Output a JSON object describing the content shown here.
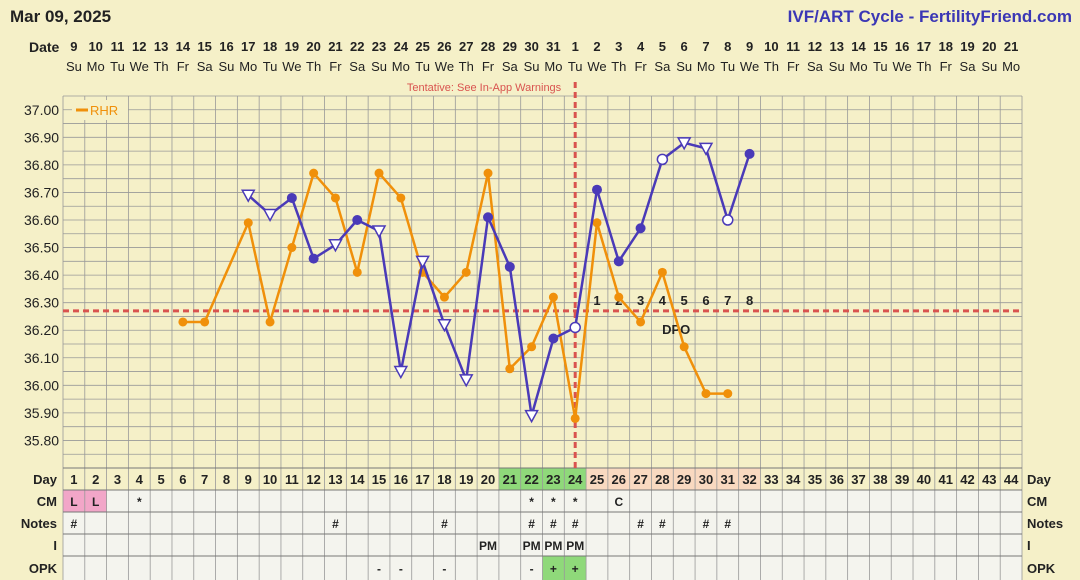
{
  "header": {
    "date": "Mar 09, 2025",
    "site": "IVF/ART Cycle - FertilityFriend.com"
  },
  "colors": {
    "background": "#f5f0c8",
    "grid": "#999999",
    "temp_series": "#4a3ab8",
    "rhr_series": "#f0900a",
    "coverline": "#d9534f",
    "fertile_day_bg": "#8fd97a",
    "post_ov_day_bg": "#f9d9c0",
    "menses_bg": "#f2a6c8"
  },
  "chart_data": {
    "type": "line",
    "x_label_left": "Date",
    "y_label": "",
    "ylim": [
      35.7,
      37.05
    ],
    "y_ticks": [
      "37.00",
      "36.90",
      "36.80",
      "36.70",
      "36.60",
      "36.50",
      "36.40",
      "36.30",
      "36.20",
      "36.10",
      "36.00",
      "35.90",
      "35.80"
    ],
    "dates": [
      "9",
      "10",
      "11",
      "12",
      "13",
      "14",
      "15",
      "16",
      "17",
      "18",
      "19",
      "20",
      "21",
      "22",
      "23",
      "24",
      "25",
      "26",
      "27",
      "28",
      "29",
      "30",
      "31",
      "1",
      "2",
      "3",
      "4",
      "5",
      "6",
      "7",
      "8",
      "9",
      "10",
      "11",
      "12",
      "13",
      "14",
      "15",
      "16",
      "17",
      "18",
      "19",
      "20",
      "21"
    ],
    "weekdays": [
      "Su",
      "Mo",
      "Tu",
      "We",
      "Th",
      "Fr",
      "Sa",
      "Su",
      "Mo",
      "Tu",
      "We",
      "Th",
      "Fr",
      "Sa",
      "Su",
      "Mo",
      "Tu",
      "We",
      "Th",
      "Fr",
      "Sa",
      "Su",
      "Mo",
      "Tu",
      "We",
      "Th",
      "Fr",
      "Sa",
      "Su",
      "Mo",
      "Tu",
      "We",
      "Th",
      "Fr",
      "Sa",
      "Su",
      "Mo",
      "Tu",
      "We",
      "Th",
      "Fr",
      "Sa",
      "Su",
      "Mo"
    ],
    "cycle_days": [
      "1",
      "2",
      "3",
      "4",
      "5",
      "6",
      "7",
      "8",
      "9",
      "10",
      "11",
      "12",
      "13",
      "14",
      "15",
      "16",
      "17",
      "18",
      "19",
      "20",
      "21",
      "22",
      "23",
      "24",
      "25",
      "26",
      "27",
      "28",
      "29",
      "30",
      "31",
      "32",
      "33",
      "34",
      "35",
      "36",
      "37",
      "38",
      "39",
      "40",
      "41",
      "42",
      "43",
      "44"
    ],
    "series": [
      {
        "name": "Temperature",
        "points": [
          {
            "day": 9,
            "value": 36.69,
            "marker": "triangle-open"
          },
          {
            "day": 10,
            "value": 36.62,
            "marker": "triangle-open"
          },
          {
            "day": 11,
            "value": 36.68,
            "marker": "filled"
          },
          {
            "day": 12,
            "value": 36.46,
            "marker": "filled"
          },
          {
            "day": 13,
            "value": 36.51,
            "marker": "triangle-open"
          },
          {
            "day": 14,
            "value": 36.6,
            "marker": "filled"
          },
          {
            "day": 15,
            "value": 36.56,
            "marker": "triangle-open"
          },
          {
            "day": 16,
            "value": 36.05,
            "marker": "triangle-open"
          },
          {
            "day": 17,
            "value": 36.45,
            "marker": "triangle-open"
          },
          {
            "day": 18,
            "value": 36.22,
            "marker": "triangle-open"
          },
          {
            "day": 19,
            "value": 36.02,
            "marker": "triangle-open"
          },
          {
            "day": 20,
            "value": 36.61,
            "marker": "filled"
          },
          {
            "day": 21,
            "value": 36.43,
            "marker": "filled"
          },
          {
            "day": 22,
            "value": 35.89,
            "marker": "triangle-open"
          },
          {
            "day": 23,
            "value": 36.17,
            "marker": "filled"
          },
          {
            "day": 24,
            "value": 36.21,
            "marker": "circle-open"
          },
          {
            "day": 25,
            "value": 36.71,
            "marker": "filled"
          },
          {
            "day": 26,
            "value": 36.45,
            "marker": "filled"
          },
          {
            "day": 27,
            "value": 36.57,
            "marker": "filled"
          },
          {
            "day": 28,
            "value": 36.82,
            "marker": "circle-open"
          },
          {
            "day": 29,
            "value": 36.88,
            "marker": "triangle-open"
          },
          {
            "day": 30,
            "value": 36.86,
            "marker": "triangle-open"
          },
          {
            "day": 31,
            "value": 36.6,
            "marker": "circle-open"
          },
          {
            "day": 32,
            "value": 36.84,
            "marker": "filled"
          }
        ]
      },
      {
        "name": "RHR",
        "points": [
          {
            "day": 6,
            "value": 36.23
          },
          {
            "day": 7,
            "value": 36.23
          },
          {
            "day": 9,
            "value": 36.59
          },
          {
            "day": 10,
            "value": 36.23
          },
          {
            "day": 11,
            "value": 36.5
          },
          {
            "day": 12,
            "value": 36.77
          },
          {
            "day": 13,
            "value": 36.68
          },
          {
            "day": 14,
            "value": 36.41
          },
          {
            "day": 15,
            "value": 36.77
          },
          {
            "day": 16,
            "value": 36.68
          },
          {
            "day": 17,
            "value": 36.41
          },
          {
            "day": 18,
            "value": 36.32
          },
          {
            "day": 19,
            "value": 36.41
          },
          {
            "day": 20,
            "value": 36.77
          },
          {
            "day": 21,
            "value": 36.06
          },
          {
            "day": 22,
            "value": 36.14
          },
          {
            "day": 23,
            "value": 36.32
          },
          {
            "day": 24,
            "value": 35.88
          },
          {
            "day": 25,
            "value": 36.59
          },
          {
            "day": 26,
            "value": 36.32
          },
          {
            "day": 27,
            "value": 36.23
          },
          {
            "day": 28,
            "value": 36.41
          },
          {
            "day": 29,
            "value": 36.14
          },
          {
            "day": 30,
            "value": 35.97
          },
          {
            "day": 31,
            "value": 35.97
          }
        ]
      }
    ],
    "coverline": 36.27,
    "ovulation_day": 24,
    "dpo_labels": [
      "1",
      "2",
      "3",
      "4",
      "5",
      "6",
      "7",
      "8"
    ],
    "dpo_text": "DPO",
    "legend": {
      "label": "RHR",
      "placement": "top-left"
    },
    "annotation": "Tentative: See In-App Warnings",
    "fertile_days": [
      21,
      22,
      23,
      24
    ],
    "post_ov_days": [
      25,
      26,
      27,
      28,
      29,
      30,
      31,
      32
    ],
    "grid": true,
    "rows": [
      {
        "label": "Day",
        "right_label": "Day"
      },
      {
        "label": "CM",
        "right_label": "CM",
        "cells": {
          "1": "L",
          "2": "L",
          "4": "*",
          "22": "*",
          "23": "*",
          "24": "*",
          "26": "C"
        }
      },
      {
        "label": "Notes",
        "right_label": "Notes",
        "cells": {
          "1": "#",
          "13": "#",
          "18": "#",
          "22": "#",
          "23": "#",
          "24": "#",
          "27": "#",
          "28": "#",
          "30": "#",
          "31": "#"
        }
      },
      {
        "label": "I",
        "right_label": "I",
        "cells": {
          "20": "PM",
          "22": "PM",
          "23": "PM",
          "24": "PM"
        }
      },
      {
        "label": "OPK",
        "right_label": "OPK",
        "cells": {
          "15": "-",
          "16": "-",
          "18": "-",
          "22": "-",
          "23": "+",
          "24": "+"
        }
      }
    ],
    "menses_days": [
      1,
      2
    ],
    "opk_positive_days": [
      23,
      24
    ]
  }
}
